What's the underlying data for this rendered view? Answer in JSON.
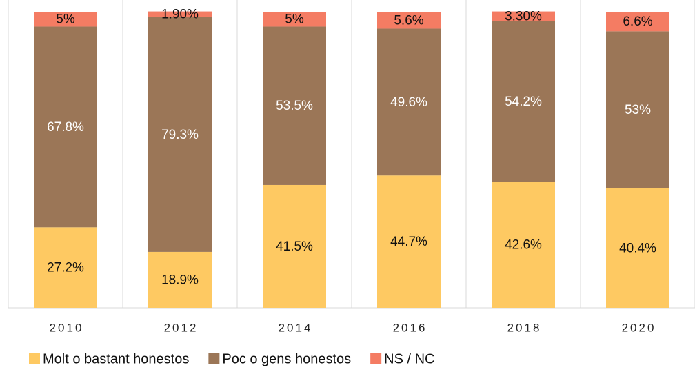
{
  "chart_data": {
    "type": "stacked-bar",
    "categories": [
      "2010",
      "2012",
      "2014",
      "2016",
      "2018",
      "2020"
    ],
    "series": [
      {
        "name": "Molt o bastant honestos",
        "color": "#fec962",
        "values": [
          27.2,
          18.9,
          41.5,
          44.7,
          42.6,
          40.4
        ],
        "value_labels": [
          "27.2%",
          "18.9%",
          "41.5%",
          "44.7%",
          "42.6%",
          "40.4%"
        ]
      },
      {
        "name": "Poc o gens honestos",
        "color": "#9b7657",
        "values": [
          67.8,
          79.3,
          53.5,
          49.6,
          54.2,
          53
        ],
        "value_labels": [
          "67.8%",
          "79.3%",
          "53.5%",
          "49.6%",
          "54.2%",
          "53%"
        ]
      },
      {
        "name": "NS / NC",
        "color": "#f47c63",
        "values": [
          5,
          1.9,
          5,
          5.6,
          3.3,
          6.6
        ],
        "value_labels": [
          "5%",
          "1.90%",
          "5%",
          "5.6%",
          "3.30%",
          "6.6%"
        ]
      }
    ],
    "ylim": [
      0,
      100
    ],
    "legend": "bottom"
  }
}
